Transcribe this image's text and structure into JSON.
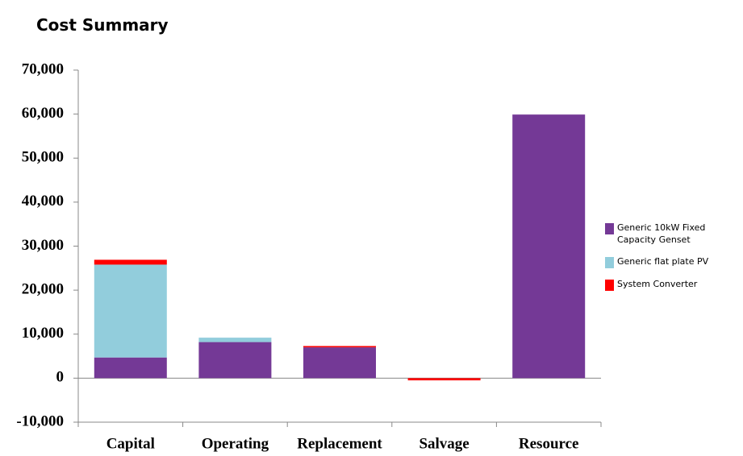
{
  "chart_data": {
    "type": "stacked_bar",
    "title": "Cost Summary",
    "categories": [
      "Capital",
      "Operating",
      "Replacement",
      "Salvage",
      "Resource"
    ],
    "series": [
      {
        "name": "Generic 10kW Fixed Capacity Genset",
        "color": "#743996",
        "values": [
          4700,
          8200,
          7000,
          0,
          59900
        ]
      },
      {
        "name": "Generic flat plate PV",
        "color": "#92cddc",
        "values": [
          21100,
          1000,
          0,
          0,
          0
        ]
      },
      {
        "name": "System Converter",
        "color": "#ff0000",
        "values": [
          1100,
          0,
          300,
          -500,
          0
        ]
      }
    ],
    "ylim": [
      -10000,
      70000
    ],
    "yticks": [
      {
        "value": -10000,
        "label": "-10,000"
      },
      0,
      {
        "value": 10000,
        "label": "10,000"
      },
      {
        "value": 20000,
        "label": "20,000"
      },
      {
        "value": 30000,
        "label": "30,000"
      },
      {
        "value": 40000,
        "label": "40,000"
      },
      {
        "value": 50000,
        "label": "50,000"
      },
      {
        "value": 60000,
        "label": "60,000"
      },
      {
        "value": 70000,
        "label": "70,000"
      }
    ],
    "legend": "right"
  }
}
